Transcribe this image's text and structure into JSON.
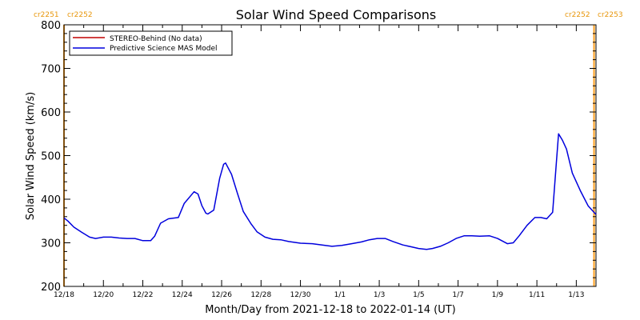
{
  "chart_data": {
    "type": "line",
    "title": "Solar Wind Speed Comparisons",
    "xlabel": "Month/Day from 2021-12-18 to 2022-01-14 (UT)",
    "ylabel": "Solar Wind Speed (km/s)",
    "ylim": [
      200,
      800
    ],
    "xlim_days": [
      0,
      27
    ],
    "yticks": [
      200,
      300,
      400,
      500,
      600,
      700,
      800
    ],
    "xticks": [
      {
        "day": 0,
        "label": "12/18"
      },
      {
        "day": 2,
        "label": "12/20"
      },
      {
        "day": 4,
        "label": "12/22"
      },
      {
        "day": 6,
        "label": "12/24"
      },
      {
        "day": 8,
        "label": "12/26"
      },
      {
        "day": 10,
        "label": "12/28"
      },
      {
        "day": 12,
        "label": "12/30"
      },
      {
        "day": 14,
        "label": "1/1"
      },
      {
        "day": 16,
        "label": "1/3"
      },
      {
        "day": 18,
        "label": "1/5"
      },
      {
        "day": 20,
        "label": "1/7"
      },
      {
        "day": 22,
        "label": "1/9"
      },
      {
        "day": 24,
        "label": "1/11"
      },
      {
        "day": 26,
        "label": "1/13"
      }
    ],
    "legend_position": "top-left",
    "series": [
      {
        "name": "STEREO-Behind (No data)",
        "color": "#c00000",
        "values": []
      },
      {
        "name": "Predictive Science MAS Model",
        "color": "#0000dd",
        "x": [
          0.0,
          0.2,
          0.5,
          0.9,
          1.3,
          1.6,
          2.0,
          2.4,
          2.8,
          3.2,
          3.6,
          4.0,
          4.4,
          4.6,
          4.9,
          5.3,
          5.8,
          6.1,
          6.6,
          6.8,
          7.0,
          7.2,
          7.3,
          7.6,
          7.9,
          8.1,
          8.2,
          8.5,
          8.8,
          9.1,
          9.5,
          9.8,
          10.2,
          10.6,
          11.0,
          11.4,
          12.0,
          12.6,
          13.1,
          13.6,
          14.1,
          14.6,
          15.1,
          15.5,
          15.9,
          16.3,
          16.7,
          17.2,
          17.6,
          18.0,
          18.4,
          18.7,
          19.1,
          19.5,
          19.9,
          20.3,
          20.7,
          21.1,
          21.6,
          22.0,
          22.5,
          22.8,
          23.1,
          23.5,
          23.9,
          24.2,
          24.5,
          24.8,
          25.0,
          25.1,
          25.3,
          25.5,
          25.8,
          26.2,
          26.6,
          26.9,
          27.0
        ],
        "values": [
          357,
          350,
          336,
          324,
          313,
          310,
          313,
          313,
          311,
          310,
          310,
          305,
          305,
          315,
          345,
          355,
          358,
          390,
          417,
          412,
          385,
          368,
          366,
          375,
          448,
          480,
          483,
          457,
          414,
          372,
          343,
          325,
          313,
          308,
          307,
          303,
          299,
          298,
          295,
          292,
          294,
          298,
          302,
          307,
          310,
          310,
          303,
          295,
          291,
          287,
          285,
          287,
          292,
          300,
          310,
          316,
          316,
          315,
          316,
          310,
          298,
          300,
          316,
          340,
          358,
          358,
          355,
          370,
          490,
          550,
          535,
          515,
          460,
          420,
          385,
          370,
          365
        ]
      }
    ],
    "annotations": [
      {
        "text": "cr2251",
        "color": "#e8960a",
        "position": "top-left"
      },
      {
        "text": "cr2252",
        "color": "#e8960a",
        "position": "top-left"
      },
      {
        "text": "cr2252",
        "color": "#e8960a",
        "position": "top-right"
      },
      {
        "text": "cr2253",
        "color": "#e8960a",
        "position": "top-right"
      }
    ],
    "rotation_boundaries_days": [
      0.0,
      26.9
    ],
    "boundary_color": "#ffa020",
    "grid": false
  }
}
